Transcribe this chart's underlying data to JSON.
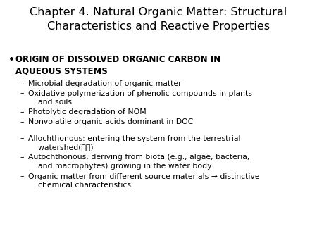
{
  "background_color": "#ffffff",
  "text_color": "#000000",
  "title_line1": "Chapter 4. Natural Organic Matter: Structural",
  "title_line2": "Characteristics and Reactive Properties",
  "title_fontsize": 11.5,
  "bullet_fontsize": 8.5,
  "sub_fontsize": 7.8,
  "bullet_text_line1": "ORIGIN OF DISSOLVED ORGANIC CARBON IN",
  "bullet_text_line2": "AQUEOUS SYSTEMS",
  "sub_bullets": [
    "Microbial degradation of organic matter",
    "Oxidative polymerization of phenolic compounds in plants\n    and soils",
    "Photolytic degradation of NOM",
    "Nonvolatile organic acids dominant in DOC"
  ],
  "sub_bullets2": [
    "Allochthonous: entering the system from the terrestrial\n    watershed(유역)",
    "Autochthonous: deriving from biota (e.g., algae, bacteria,\n    and macrophytes) growing in the water body",
    "Organic matter from different source materials → distinctive\n    chemical characteristics"
  ]
}
